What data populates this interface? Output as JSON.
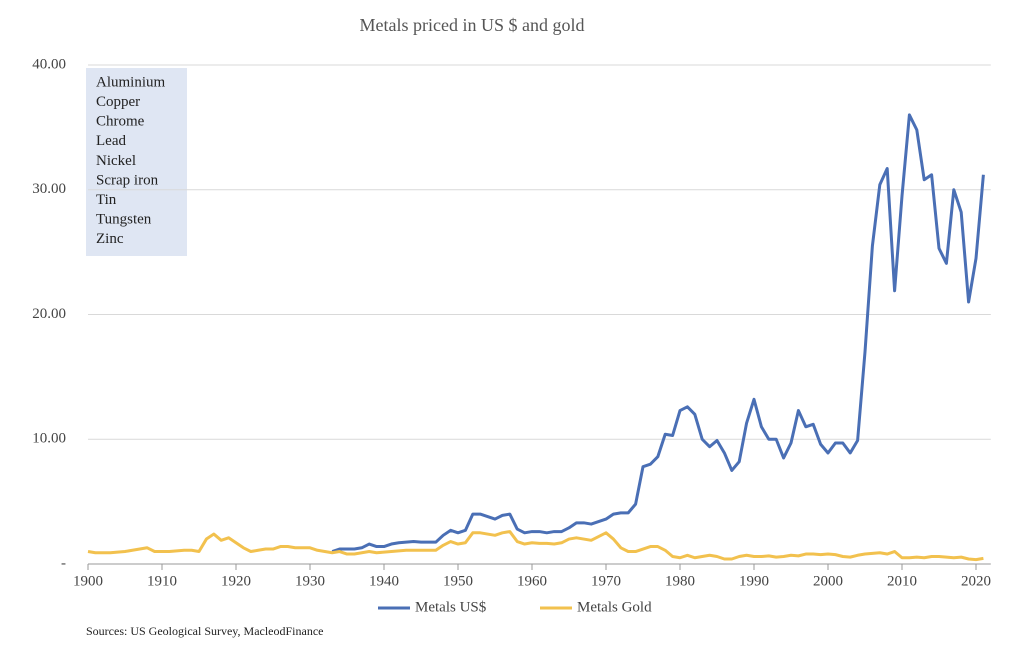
{
  "chart_data": {
    "type": "line",
    "title": "Metals priced in US $ and gold",
    "source": "Sources: US Geological Survey, MacleodFinance",
    "annotations": [
      "Aluminium",
      "Copper",
      "Chrome",
      "Lead",
      "Nickel",
      "Scrap iron",
      "Tin",
      "Tungsten",
      "Zinc"
    ],
    "x": [
      1900,
      1901,
      1902,
      1903,
      1904,
      1905,
      1906,
      1907,
      1908,
      1909,
      1910,
      1911,
      1912,
      1913,
      1914,
      1915,
      1916,
      1917,
      1918,
      1919,
      1920,
      1921,
      1922,
      1923,
      1924,
      1925,
      1926,
      1927,
      1928,
      1929,
      1930,
      1931,
      1932,
      1933,
      1934,
      1935,
      1936,
      1937,
      1938,
      1939,
      1940,
      1941,
      1942,
      1943,
      1944,
      1945,
      1946,
      1947,
      1948,
      1949,
      1950,
      1951,
      1952,
      1953,
      1954,
      1955,
      1956,
      1957,
      1958,
      1959,
      1960,
      1961,
      1962,
      1963,
      1964,
      1965,
      1966,
      1967,
      1968,
      1969,
      1970,
      1971,
      1972,
      1973,
      1974,
      1975,
      1976,
      1977,
      1978,
      1979,
      1980,
      1981,
      1982,
      1983,
      1984,
      1985,
      1986,
      1987,
      1988,
      1989,
      1990,
      1991,
      1992,
      1993,
      1994,
      1995,
      1996,
      1997,
      1998,
      1999,
      2000,
      2001,
      2002,
      2003,
      2004,
      2005,
      2006,
      2007,
      2008,
      2009,
      2010,
      2011,
      2012,
      2013,
      2014,
      2015,
      2016,
      2017,
      2018,
      2019,
      2020,
      2021
    ],
    "series": [
      {
        "name": "Metals US$",
        "color": "#4a6fb5",
        "values": [
          null,
          null,
          null,
          null,
          null,
          null,
          null,
          null,
          null,
          null,
          null,
          null,
          null,
          null,
          null,
          null,
          null,
          null,
          null,
          null,
          null,
          null,
          null,
          null,
          null,
          null,
          null,
          null,
          null,
          null,
          null,
          null,
          null,
          1.0,
          1.2,
          1.2,
          1.2,
          1.3,
          1.6,
          1.4,
          1.4,
          1.6,
          1.7,
          1.75,
          1.8,
          1.75,
          1.75,
          1.75,
          2.3,
          2.7,
          2.5,
          2.7,
          4.0,
          4.0,
          3.8,
          3.6,
          3.9,
          4.0,
          2.8,
          2.5,
          2.6,
          2.6,
          2.5,
          2.6,
          2.6,
          2.9,
          3.3,
          3.3,
          3.2,
          3.4,
          3.6,
          4.0,
          4.1,
          4.1,
          4.8,
          7.8,
          8.0,
          8.6,
          10.4,
          10.3,
          12.3,
          12.6,
          12.0,
          10.0,
          9.4,
          9.9,
          8.9,
          7.5,
          8.2,
          11.3,
          13.2,
          11.0,
          10.0,
          10.0,
          8.5,
          9.7,
          12.3,
          11.0,
          11.2,
          9.6,
          8.9,
          9.7,
          9.7,
          8.9,
          9.9,
          17.0,
          25.5,
          30.4,
          31.7,
          21.9,
          29.5,
          36.0,
          34.8,
          30.8,
          31.2,
          25.3,
          24.1,
          30.0,
          28.2,
          21.0,
          24.5,
          31.2
        ]
      },
      {
        "name": "Metals Gold",
        "color": "#f2c14e",
        "values": [
          1.0,
          0.9,
          0.9,
          0.9,
          0.95,
          1.0,
          1.1,
          1.2,
          1.3,
          1.0,
          1.0,
          1.0,
          1.05,
          1.1,
          1.1,
          1.0,
          2.0,
          2.4,
          1.9,
          2.1,
          1.7,
          1.3,
          1.0,
          1.1,
          1.2,
          1.2,
          1.4,
          1.4,
          1.3,
          1.3,
          1.3,
          1.1,
          1.0,
          0.9,
          1.0,
          0.8,
          0.8,
          0.9,
          1.0,
          0.9,
          0.95,
          1.0,
          1.05,
          1.1,
          1.1,
          1.1,
          1.1,
          1.1,
          1.5,
          1.8,
          1.6,
          1.7,
          2.5,
          2.5,
          2.4,
          2.3,
          2.5,
          2.6,
          1.8,
          1.6,
          1.7,
          1.65,
          1.65,
          1.6,
          1.7,
          2.0,
          2.1,
          2.0,
          1.9,
          2.2,
          2.5,
          2.0,
          1.3,
          1.0,
          1.0,
          1.2,
          1.4,
          1.4,
          1.1,
          0.6,
          0.5,
          0.7,
          0.5,
          0.6,
          0.7,
          0.6,
          0.4,
          0.4,
          0.6,
          0.7,
          0.6,
          0.6,
          0.65,
          0.55,
          0.6,
          0.7,
          0.65,
          0.8,
          0.8,
          0.75,
          0.8,
          0.75,
          0.6,
          0.55,
          0.7,
          0.8,
          0.85,
          0.9,
          0.8,
          1.0,
          0.5,
          0.5,
          0.55,
          0.5,
          0.6,
          0.6,
          0.55,
          0.5,
          0.55,
          0.4,
          0.35,
          0.45
        ]
      }
    ],
    "xlim": [
      1900,
      2022
    ],
    "xticks": [
      1900,
      1910,
      1920,
      1930,
      1940,
      1950,
      1960,
      1970,
      1980,
      1990,
      2000,
      2010,
      2020
    ],
    "ylim": [
      0,
      40
    ],
    "yticks": [
      {
        "value": 0,
        "label": "-"
      },
      {
        "value": 10,
        "label": "10.00"
      },
      {
        "value": 20,
        "label": "20.00"
      },
      {
        "value": 30,
        "label": "30.00"
      },
      {
        "value": 40,
        "label": "40.00"
      }
    ],
    "grid": true,
    "legend": "bottom"
  }
}
